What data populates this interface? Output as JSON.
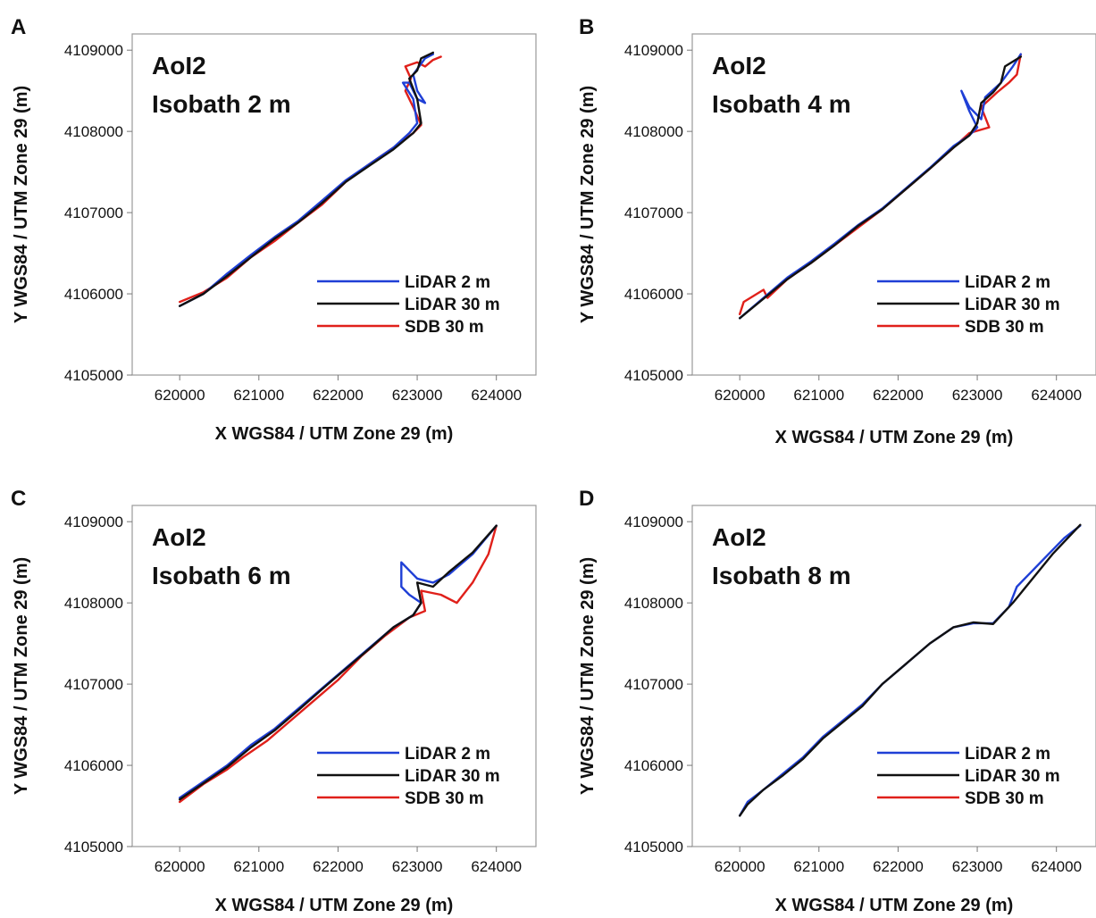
{
  "chart_data": [
    {
      "panel_label": "A",
      "type": "line",
      "title": [
        "AoI2",
        "Isobath 2 m"
      ],
      "xlabel": "X WGS84 / UTM Zone 29 (m)",
      "ylabel": "Y WGS84 / UTM Zone 29 (m)",
      "xlim": [
        619400,
        624500
      ],
      "ylim": [
        4105000,
        4109200
      ],
      "xticks": [
        "620000",
        "621000",
        "622000",
        "623000",
        "624000"
      ],
      "yticks": [
        "4105000",
        "4106000",
        "4107000",
        "4108000",
        "4109000"
      ],
      "legend_position": "bottom-right",
      "series": [
        {
          "name": "LiDAR 2 m",
          "color": "#1f3fd6",
          "points": [
            [
              620000,
              4105850
            ],
            [
              620300,
              4106000
            ],
            [
              620600,
              4106250
            ],
            [
              620900,
              4106480
            ],
            [
              621200,
              4106700
            ],
            [
              621500,
              4106900
            ],
            [
              621800,
              4107150
            ],
            [
              622100,
              4107400
            ],
            [
              622400,
              4107600
            ],
            [
              622700,
              4107800
            ],
            [
              622900,
              4107980
            ],
            [
              623000,
              4108100
            ],
            [
              622950,
              4108400
            ],
            [
              622820,
              4108600
            ],
            [
              622900,
              4108600
            ],
            [
              623000,
              4108400
            ],
            [
              623100,
              4108350
            ],
            [
              623000,
              4108500
            ],
            [
              622950,
              4108700
            ],
            [
              623100,
              4108900
            ],
            [
              623200,
              4108950
            ]
          ]
        },
        {
          "name": "LiDAR 30 m",
          "color": "#111111",
          "points": [
            [
              620000,
              4105850
            ],
            [
              620300,
              4106000
            ],
            [
              620600,
              4106220
            ],
            [
              620900,
              4106450
            ],
            [
              621200,
              4106680
            ],
            [
              621500,
              4106880
            ],
            [
              621800,
              4107120
            ],
            [
              622100,
              4107380
            ],
            [
              622400,
              4107580
            ],
            [
              622700,
              4107780
            ],
            [
              622950,
              4107980
            ],
            [
              623050,
              4108100
            ],
            [
              623000,
              4108400
            ],
            [
              622900,
              4108650
            ],
            [
              623000,
              4108750
            ],
            [
              623050,
              4108900
            ],
            [
              623200,
              4108970
            ]
          ]
        },
        {
          "name": "SDB 30 m",
          "color": "#e0201a",
          "points": [
            [
              620000,
              4105900
            ],
            [
              620300,
              4106020
            ],
            [
              620600,
              4106200
            ],
            [
              620900,
              4106450
            ],
            [
              621200,
              4106650
            ],
            [
              621500,
              4106880
            ],
            [
              621800,
              4107100
            ],
            [
              622100,
              4107380
            ],
            [
              622400,
              4107600
            ],
            [
              622700,
              4107800
            ],
            [
              622950,
              4107980
            ],
            [
              623050,
              4108080
            ],
            [
              622950,
              4108300
            ],
            [
              622850,
              4108500
            ],
            [
              622920,
              4108650
            ],
            [
              622850,
              4108800
            ],
            [
              623000,
              4108850
            ],
            [
              623100,
              4108800
            ],
            [
              623200,
              4108880
            ],
            [
              623300,
              4108920
            ]
          ]
        }
      ]
    },
    {
      "panel_label": "B",
      "type": "line",
      "title": [
        "AoI2",
        "Isobath 4 m"
      ],
      "xlabel": "X WGS84 / UTM Zone 29 (m)",
      "ylabel": "Y WGS84 / UTM Zone 29 (m)",
      "xlim": [
        619400,
        624500
      ],
      "ylim": [
        4105000,
        4109200
      ],
      "xticks": [
        "620000",
        "621000",
        "622000",
        "623000",
        "624000"
      ],
      "yticks": [
        "4105000",
        "4106000",
        "4107000",
        "4108000",
        "4109000"
      ],
      "legend_position": "bottom-right",
      "series": [
        {
          "name": "LiDAR 2 m",
          "color": "#1f3fd6",
          "points": [
            [
              620000,
              4105700
            ],
            [
              620300,
              4105950
            ],
            [
              620600,
              4106200
            ],
            [
              620900,
              4106400
            ],
            [
              621200,
              4106620
            ],
            [
              621500,
              4106850
            ],
            [
              621800,
              4107050
            ],
            [
              622100,
              4107300
            ],
            [
              622400,
              4107550
            ],
            [
              622700,
              4107820
            ],
            [
              622900,
              4107950
            ],
            [
              623000,
              4108050
            ],
            [
              622900,
              4108250
            ],
            [
              622800,
              4108500
            ],
            [
              622900,
              4108300
            ],
            [
              623050,
              4108150
            ],
            [
              623100,
              4108420
            ],
            [
              623300,
              4108600
            ],
            [
              623450,
              4108800
            ],
            [
              623550,
              4108950
            ]
          ]
        },
        {
          "name": "LiDAR 30 m",
          "color": "#111111",
          "points": [
            [
              620000,
              4105700
            ],
            [
              620300,
              4105940
            ],
            [
              620600,
              4106180
            ],
            [
              620900,
              4106380
            ],
            [
              621200,
              4106600
            ],
            [
              621500,
              4106840
            ],
            [
              621800,
              4107040
            ],
            [
              622100,
              4107290
            ],
            [
              622400,
              4107540
            ],
            [
              622700,
              4107800
            ],
            [
              622900,
              4107950
            ],
            [
              623000,
              4108100
            ],
            [
              623050,
              4108350
            ],
            [
              623200,
              4108480
            ],
            [
              623300,
              4108600
            ],
            [
              623350,
              4108800
            ],
            [
              623550,
              4108920
            ]
          ]
        },
        {
          "name": "SDB 30 m",
          "color": "#e0201a",
          "points": [
            [
              620000,
              4105750
            ],
            [
              620050,
              4105900
            ],
            [
              620300,
              4106050
            ],
            [
              620350,
              4105950
            ],
            [
              620600,
              4106180
            ],
            [
              620900,
              4106380
            ],
            [
              621200,
              4106600
            ],
            [
              621500,
              4106820
            ],
            [
              621800,
              4107040
            ],
            [
              622100,
              4107290
            ],
            [
              622400,
              4107540
            ],
            [
              622700,
              4107800
            ],
            [
              622900,
              4107980
            ],
            [
              623150,
              4108050
            ],
            [
              623050,
              4108300
            ],
            [
              623250,
              4108480
            ],
            [
              623400,
              4108600
            ],
            [
              623500,
              4108700
            ],
            [
              623550,
              4108950
            ]
          ]
        }
      ]
    },
    {
      "panel_label": "C",
      "type": "line",
      "title": [
        "AoI2",
        "Isobath 6 m"
      ],
      "xlabel": "X WGS84 / UTM Zone 29 (m)",
      "ylabel": "Y WGS84 / UTM Zone 29 (m)",
      "xlim": [
        619400,
        624500
      ],
      "ylim": [
        4105000,
        4109200
      ],
      "xticks": [
        "620000",
        "621000",
        "622000",
        "623000",
        "624000"
      ],
      "yticks": [
        "4105000",
        "4106000",
        "4107000",
        "4108000",
        "4109000"
      ],
      "legend_position": "bottom-right",
      "series": [
        {
          "name": "LiDAR 2 m",
          "color": "#1f3fd6",
          "points": [
            [
              620000,
              4105600
            ],
            [
              620300,
              4105800
            ],
            [
              620600,
              4106000
            ],
            [
              620900,
              4106250
            ],
            [
              621200,
              4106450
            ],
            [
              621500,
              4106700
            ],
            [
              621800,
              4106950
            ],
            [
              622100,
              4107200
            ],
            [
              622400,
              4107450
            ],
            [
              622700,
              4107700
            ],
            [
              622950,
              4107850
            ],
            [
              623050,
              4108000
            ],
            [
              622900,
              4108100
            ],
            [
              622800,
              4108200
            ],
            [
              622800,
              4108500
            ],
            [
              622900,
              4108400
            ],
            [
              623000,
              4108300
            ],
            [
              623200,
              4108250
            ],
            [
              623400,
              4108350
            ],
            [
              623700,
              4108600
            ],
            [
              624000,
              4108950
            ]
          ]
        },
        {
          "name": "LiDAR 30 m",
          "color": "#111111",
          "points": [
            [
              620000,
              4105580
            ],
            [
              620300,
              4105780
            ],
            [
              620600,
              4105980
            ],
            [
              620900,
              4106220
            ],
            [
              621200,
              4106430
            ],
            [
              621500,
              4106680
            ],
            [
              621800,
              4106940
            ],
            [
              622100,
              4107190
            ],
            [
              622400,
              4107440
            ],
            [
              622700,
              4107700
            ],
            [
              622950,
              4107850
            ],
            [
              623050,
              4108000
            ],
            [
              623000,
              4108250
            ],
            [
              623200,
              4108200
            ],
            [
              623400,
              4108380
            ],
            [
              623700,
              4108620
            ],
            [
              624000,
              4108950
            ]
          ]
        },
        {
          "name": "SDB 30 m",
          "color": "#e0201a",
          "points": [
            [
              620000,
              4105550
            ],
            [
              620300,
              4105770
            ],
            [
              620600,
              4105950
            ],
            [
              620800,
              4106100
            ],
            [
              621100,
              4106300
            ],
            [
              621400,
              4106550
            ],
            [
              621700,
              4106800
            ],
            [
              622000,
              4107050
            ],
            [
              622300,
              4107350
            ],
            [
              622600,
              4107600
            ],
            [
              622900,
              4107820
            ],
            [
              623100,
              4107900
            ],
            [
              623050,
              4108150
            ],
            [
              623300,
              4108100
            ],
            [
              623500,
              4108000
            ],
            [
              623700,
              4108250
            ],
            [
              623900,
              4108600
            ],
            [
              624000,
              4108950
            ]
          ]
        }
      ]
    },
    {
      "panel_label": "D",
      "type": "line",
      "title": [
        "AoI2",
        "Isobath 8 m"
      ],
      "xlabel": "X WGS84 / UTM Zone 29 (m)",
      "ylabel": "Y WGS84 / UTM Zone 29 (m)",
      "xlim": [
        619400,
        624500
      ],
      "ylim": [
        4105000,
        4109200
      ],
      "xticks": [
        "620000",
        "621000",
        "622000",
        "623000",
        "624000"
      ],
      "yticks": [
        "4105000",
        "4106000",
        "4107000",
        "4108000",
        "4109000"
      ],
      "legend_position": "bottom-right",
      "series": [
        {
          "name": "LiDAR 2 m",
          "color": "#1f3fd6",
          "points": [
            [
              620000,
              4105380
            ],
            [
              620100,
              4105550
            ],
            [
              620300,
              4105700
            ],
            [
              620550,
              4105900
            ],
            [
              620800,
              4106100
            ],
            [
              621050,
              4106350
            ],
            [
              621300,
              4106550
            ],
            [
              621550,
              4106750
            ],
            [
              621800,
              4107000
            ],
            [
              622100,
              4107250
            ],
            [
              622400,
              4107500
            ],
            [
              622700,
              4107700
            ],
            [
              622950,
              4107750
            ],
            [
              623200,
              4107750
            ],
            [
              623400,
              4107950
            ],
            [
              623500,
              4108200
            ],
            [
              623700,
              4108400
            ],
            [
              623900,
              4108600
            ],
            [
              624100,
              4108800
            ],
            [
              624300,
              4108950
            ]
          ]
        },
        {
          "name": "LiDAR 30 m",
          "color": "#111111",
          "points": [
            [
              620000,
              4105380
            ],
            [
              620100,
              4105520
            ],
            [
              620300,
              4105700
            ],
            [
              620550,
              4105880
            ],
            [
              620800,
              4106080
            ],
            [
              621050,
              4106330
            ],
            [
              621300,
              4106530
            ],
            [
              621550,
              4106730
            ],
            [
              621800,
              4107000
            ],
            [
              622100,
              4107250
            ],
            [
              622400,
              4107500
            ],
            [
              622700,
              4107700
            ],
            [
              622950,
              4107760
            ],
            [
              623200,
              4107740
            ],
            [
              623450,
              4108000
            ],
            [
              623700,
              4108300
            ],
            [
              623950,
              4108600
            ],
            [
              624300,
              4108960
            ]
          ]
        },
        {
          "name": "SDB 30 m",
          "color": "#e0201a",
          "points": []
        }
      ]
    }
  ]
}
